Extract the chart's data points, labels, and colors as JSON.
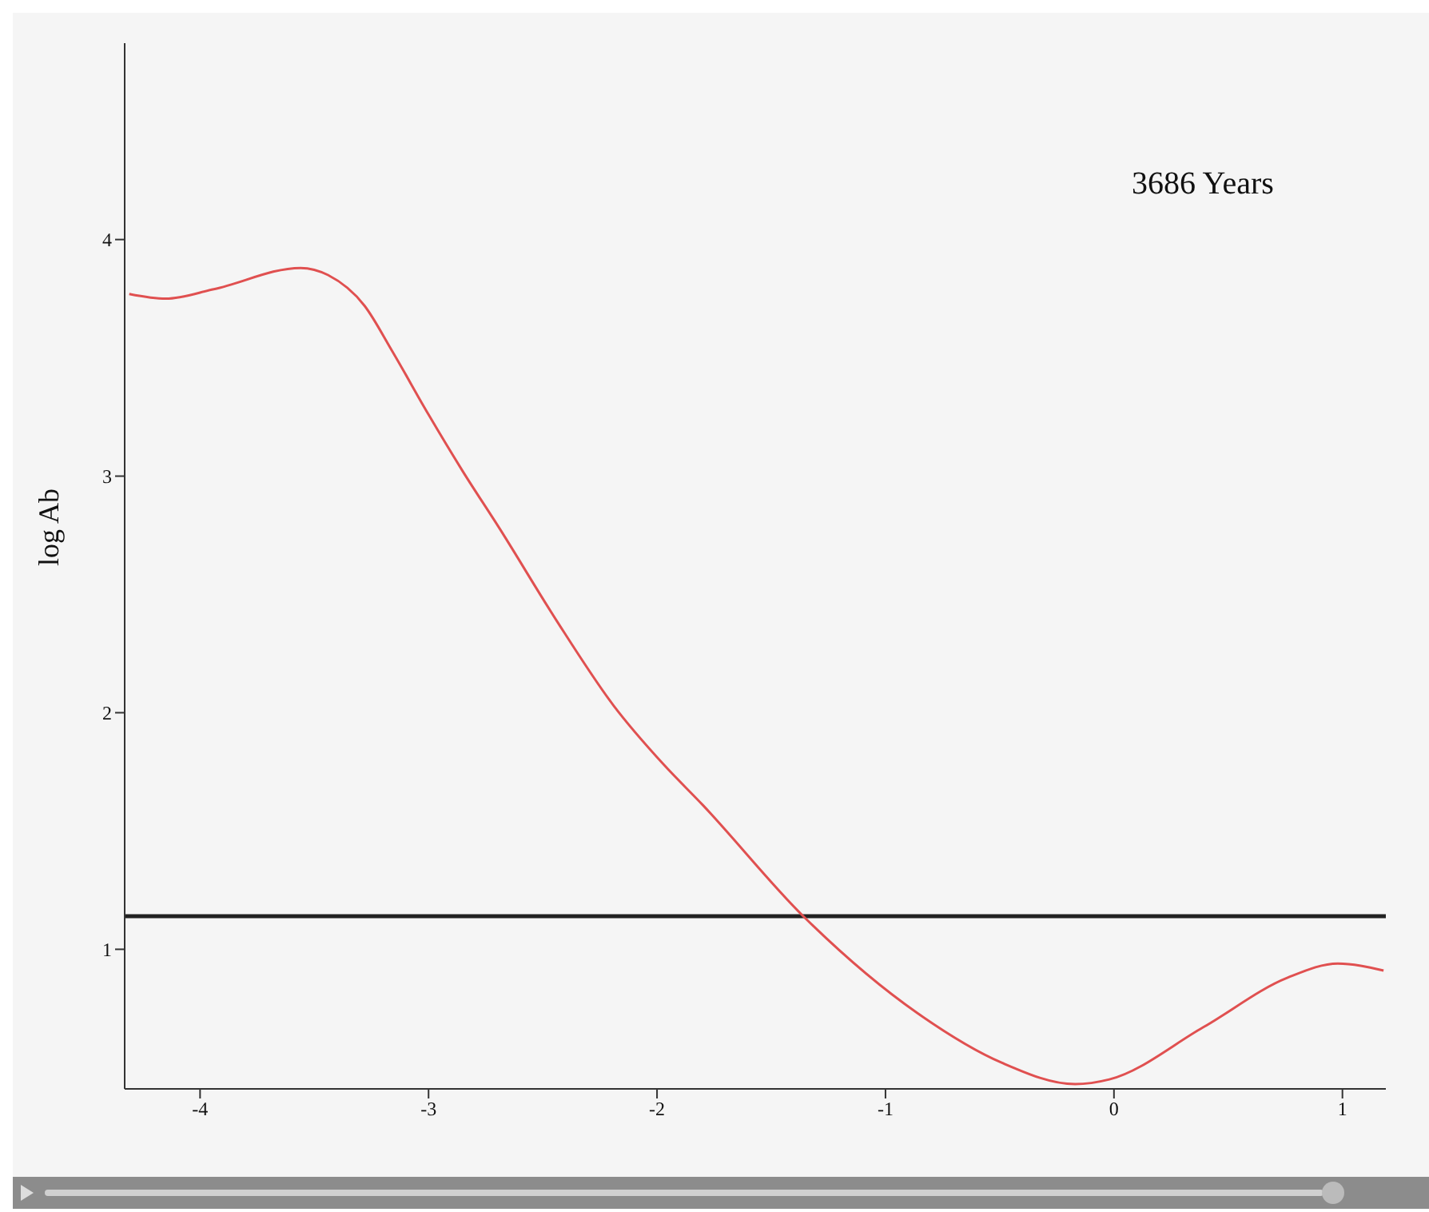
{
  "chart_data": {
    "type": "line",
    "ylabel": "log Ab",
    "annotations": [
      "3686 Years"
    ],
    "xlim": [
      -4.33,
      1.19
    ],
    "ylim": [
      0.41,
      4.83
    ],
    "xticks": [
      -4,
      -3,
      -2,
      -1,
      0,
      1
    ],
    "yticks": [
      1,
      2,
      3,
      4
    ],
    "ref_lines": [
      {
        "axis": "y",
        "value": 1.14,
        "color": "#222222"
      }
    ],
    "series": [
      {
        "color": "#e05050",
        "x": [
          -4.31,
          -4.15,
          -3.94,
          -3.56,
          -3.44,
          -3.28,
          -3.16,
          -3.0,
          -2.85,
          -2.69,
          -2.44,
          -2.19,
          -1.97,
          -1.8,
          -1.36,
          -0.86,
          -0.49,
          -0.17,
          -0.02,
          0.39,
          0.76,
          0.98,
          1.18
        ],
        "values": [
          3.77,
          3.75,
          3.79,
          3.88,
          3.85,
          3.72,
          3.53,
          3.26,
          3.02,
          2.78,
          2.39,
          2.03,
          1.78,
          1.61,
          1.14,
          0.73,
          0.52,
          0.43,
          0.45,
          0.67,
          0.88,
          0.94,
          0.91
        ]
      }
    ]
  }
}
